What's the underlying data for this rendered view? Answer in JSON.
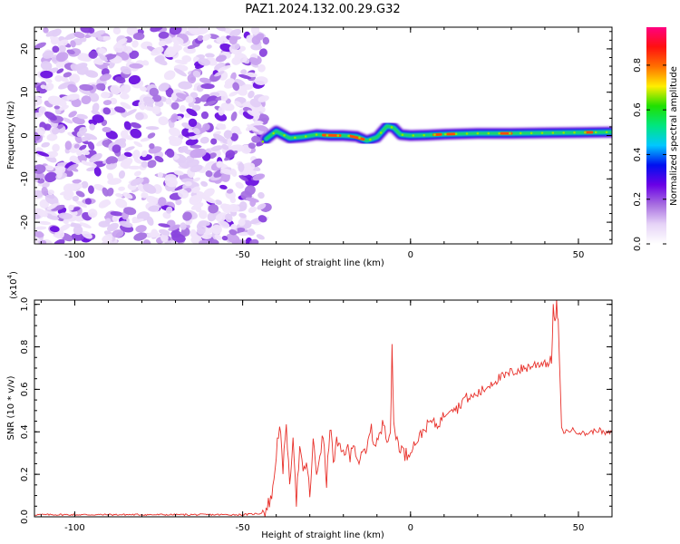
{
  "title": "PAZ1.2024.132.00.29.G32",
  "chart_data": [
    {
      "type": "heatmap",
      "xlabel": "Height of straight line (km)",
      "ylabel": "Frequency (Hz)",
      "xlim": [
        -112,
        60
      ],
      "ylim": [
        -25,
        25
      ],
      "xticks": [
        -100,
        -50,
        0,
        50
      ],
      "yticks": [
        -20,
        -10,
        0,
        10,
        20
      ],
      "grid": false,
      "noise_region_x": [
        -112,
        -43
      ],
      "signal_trace": {
        "x": [
          -43,
          -40,
          -36,
          -32,
          -28,
          -24,
          -20,
          -16,
          -13,
          -10,
          -7,
          -5,
          -3,
          0,
          5,
          10,
          15,
          20,
          30,
          40,
          50,
          60
        ],
        "freq": [
          -0.8,
          1.0,
          -0.6,
          -0.3,
          0.2,
          0.0,
          0.0,
          -0.2,
          -1.2,
          -0.4,
          2.2,
          1.8,
          0.2,
          0.0,
          0.1,
          0.3,
          0.4,
          0.5,
          0.5,
          0.6,
          0.7,
          0.8
        ]
      },
      "colorbar": {
        "label": "Normalized spectral amplitude",
        "range": [
          0.0,
          0.97
        ],
        "ticks": [
          0.0,
          0.2,
          0.4,
          0.6,
          0.8
        ],
        "tick_labels": [
          "0.0",
          "0.2",
          "0.4",
          "0.6",
          "0.8"
        ],
        "colors": [
          "#ffffff",
          "#e6d3f7",
          "#a76de0",
          "#6a00e6",
          "#0010f0",
          "#00c8ff",
          "#00e680",
          "#20e000",
          "#ffee00",
          "#ff7000",
          "#ff1010",
          "#ff0080"
        ]
      }
    },
    {
      "type": "line",
      "xlabel": "Height of straight line (km)",
      "ylabel": "SNR (10 * v/v)",
      "yunit": "(x10",
      "yunit_exp": "4",
      "yunit_close": ")",
      "xlim": [
        -112,
        60
      ],
      "ylim": [
        0.0,
        1.02
      ],
      "xticks": [
        -100,
        -50,
        0,
        50
      ],
      "yticks": [
        0.0,
        0.2,
        0.4,
        0.6,
        0.8,
        1.0
      ],
      "ytick_labels": [
        "0.0",
        "0.2",
        "0.4",
        "0.6",
        "0.8",
        "1.0"
      ],
      "color": "#e8302a",
      "grid": false,
      "series": [
        {
          "x": [
            -112,
            -90,
            -70,
            -50,
            -45,
            -43,
            -41,
            -40,
            -39,
            -38,
            -37,
            -36,
            -35,
            -34,
            -33,
            -32,
            -31,
            -30,
            -29,
            -28,
            -27,
            -26,
            -25,
            -24,
            -23,
            -22,
            -21,
            -20,
            -19,
            -18,
            -17,
            -16,
            -15,
            -14,
            -13,
            -12,
            -11,
            -10,
            -9,
            -8,
            -7,
            -6,
            -5.5,
            -5,
            -4,
            -3,
            -2,
            -1,
            0,
            2,
            4,
            6,
            8,
            10,
            12,
            14,
            16,
            18,
            20,
            22,
            24,
            26,
            28,
            30,
            32,
            34,
            36,
            38,
            40,
            41,
            42,
            42.5,
            43,
            43.5,
            44,
            45,
            46,
            48,
            50,
            52,
            54,
            56,
            58,
            60
          ],
          "y": [
            0.01,
            0.01,
            0.01,
            0.01,
            0.015,
            0.03,
            0.12,
            0.3,
            0.45,
            0.2,
            0.46,
            0.12,
            0.4,
            0.08,
            0.32,
            0.2,
            0.26,
            0.1,
            0.35,
            0.2,
            0.3,
            0.38,
            0.15,
            0.44,
            0.26,
            0.35,
            0.31,
            0.3,
            0.33,
            0.27,
            0.37,
            0.28,
            0.26,
            0.3,
            0.3,
            0.43,
            0.35,
            0.36,
            0.38,
            0.45,
            0.38,
            0.4,
            0.78,
            0.44,
            0.36,
            0.33,
            0.3,
            0.29,
            0.32,
            0.36,
            0.41,
            0.45,
            0.43,
            0.48,
            0.52,
            0.51,
            0.56,
            0.56,
            0.58,
            0.6,
            0.63,
            0.65,
            0.66,
            0.68,
            0.69,
            0.7,
            0.71,
            0.72,
            0.73,
            0.72,
            0.74,
            0.99,
            0.9,
            1.0,
            0.91,
            0.41,
            0.4,
            0.41,
            0.4,
            0.39,
            0.4,
            0.41,
            0.39,
            0.4
          ]
        }
      ]
    }
  ]
}
